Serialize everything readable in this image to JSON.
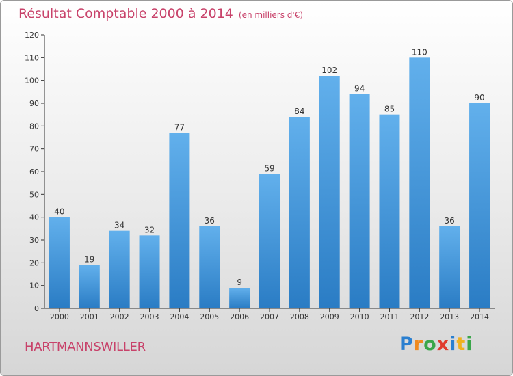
{
  "title": "Résultat Comptable 2000 à 2014",
  "subtitle": "(en milliers d'€)",
  "commune": "HARTMANNSWILLER",
  "logo": {
    "letters": [
      "P",
      "r",
      "o",
      "x",
      "i",
      "t",
      "i"
    ],
    "colors": [
      "#2a7fd0",
      "#f08a1e",
      "#3aa64a",
      "#e03a2e",
      "#2a7fd0",
      "#f0b21e",
      "#3aa64a"
    ]
  },
  "colors": {
    "bar_light": "#62b0ec",
    "bar_dark": "#2a7cc4",
    "axis": "#333333",
    "title": "#c8426a"
  },
  "chart_data": {
    "type": "bar",
    "title": "Résultat Comptable 2000 à 2014",
    "subtitle": "(en milliers d'€)",
    "categories": [
      "2000",
      "2001",
      "2002",
      "2003",
      "2004",
      "2005",
      "2006",
      "2007",
      "2008",
      "2009",
      "2010",
      "2011",
      "2012",
      "2013",
      "2014"
    ],
    "values": [
      40,
      19,
      34,
      32,
      77,
      36,
      9,
      59,
      84,
      102,
      94,
      85,
      110,
      36,
      90
    ],
    "ylim": [
      0,
      120
    ],
    "yticks": [
      0,
      10,
      20,
      30,
      40,
      50,
      60,
      70,
      80,
      90,
      100,
      110,
      120
    ],
    "grid": false,
    "data_labels": true
  }
}
